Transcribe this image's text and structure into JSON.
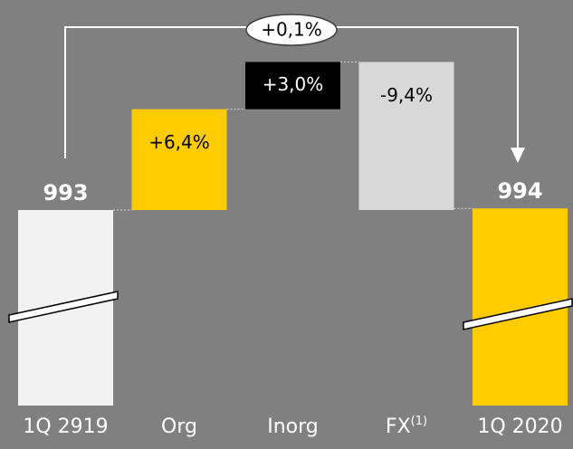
{
  "chart_data": {
    "type": "waterfall",
    "categories": [
      "1Q 2919",
      "Org",
      "Inorg",
      "FX",
      "1Q 2020"
    ],
    "category_superscripts": [
      null,
      null,
      null,
      "(1)",
      null
    ],
    "values": [
      993,
      6.4,
      3.0,
      -9.4,
      994
    ],
    "value_labels": [
      "993",
      "+6,4%",
      "+3,0%",
      "-9,4%",
      "994"
    ],
    "colors": [
      "#f2f2f2",
      "#ffcc00",
      "#000000",
      "#d9d9d9",
      "#ffcc00"
    ],
    "label_colors": [
      "#ffffff",
      "#000000",
      "#ffffff",
      "#000000",
      "#ffffff"
    ],
    "total_change": {
      "value": 0.1,
      "label": "+0,1%"
    }
  }
}
